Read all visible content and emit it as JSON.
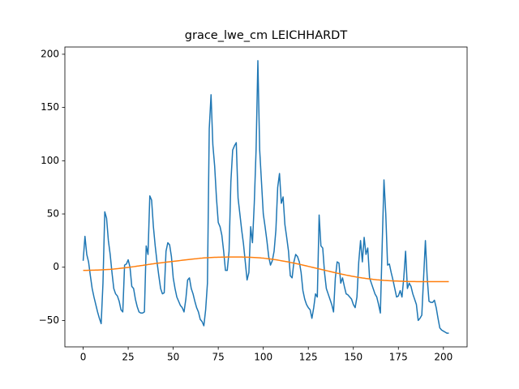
{
  "chart_data": {
    "type": "line",
    "title": "grace_lwe_cm LEICHHARDT",
    "x": [
      0,
      1,
      2,
      3,
      4,
      5,
      6,
      7,
      8,
      9,
      10,
      11,
      12,
      13,
      14,
      15,
      16,
      17,
      18,
      19,
      20,
      21,
      22,
      23,
      24,
      25,
      26,
      27,
      28,
      29,
      30,
      31,
      32,
      33,
      34,
      35,
      36,
      37,
      38,
      39,
      40,
      41,
      42,
      43,
      44,
      45,
      46,
      47,
      48,
      49,
      50,
      51,
      52,
      53,
      54,
      55,
      56,
      57,
      58,
      59,
      60,
      61,
      62,
      63,
      64,
      65,
      66,
      67,
      68,
      69,
      70,
      71,
      72,
      73,
      74,
      75,
      76,
      77,
      78,
      79,
      80,
      81,
      82,
      83,
      84,
      85,
      86,
      87,
      88,
      89,
      90,
      91,
      92,
      93,
      94,
      95,
      96,
      97,
      98,
      99,
      100,
      101,
      102,
      103,
      104,
      105,
      106,
      107,
      108,
      109,
      110,
      111,
      112,
      113,
      114,
      115,
      116,
      117,
      118,
      119,
      120,
      121,
      122,
      123,
      124,
      125,
      126,
      127,
      128,
      129,
      130,
      131,
      132,
      133,
      134,
      135,
      136,
      137,
      138,
      139,
      140,
      141,
      142,
      143,
      144,
      145,
      146,
      147,
      148,
      149,
      150,
      151,
      152,
      153,
      154,
      155,
      156,
      157,
      158,
      159,
      160,
      161,
      162,
      163,
      164,
      165,
      166,
      167,
      168,
      169,
      170,
      171,
      172,
      173,
      174,
      175,
      176,
      177,
      178,
      179,
      180,
      181,
      182,
      183,
      184,
      185,
      186,
      187,
      188,
      189,
      190,
      191,
      192,
      193,
      194,
      195,
      196,
      197,
      198,
      199,
      200,
      201,
      202,
      203
    ],
    "series": [
      {
        "color": "#1f77b4",
        "values": [
          6,
          29,
          12,
          5,
          -8,
          -20,
          -28,
          -35,
          -42,
          -48,
          -53,
          -15,
          52,
          46,
          25,
          12,
          -5,
          -20,
          -25,
          -27,
          -32,
          -40,
          -42,
          2,
          3,
          7,
          0,
          -18,
          -20,
          -30,
          -37,
          -42,
          -43,
          -43,
          -42,
          20,
          12,
          67,
          63,
          38,
          20,
          5,
          -8,
          -20,
          -25,
          -24,
          15,
          23,
          21,
          10,
          -10,
          -20,
          -28,
          -32,
          -36,
          -38,
          -42,
          -30,
          -12,
          -10,
          -20,
          -25,
          -32,
          -38,
          -42,
          -49,
          -51,
          -55,
          -40,
          -15,
          130,
          162,
          115,
          95,
          65,
          42,
          38,
          30,
          15,
          -3,
          -3,
          15,
          80,
          110,
          114,
          117,
          65,
          50,
          35,
          22,
          5,
          -12,
          -5,
          38,
          23,
          60,
          110,
          194,
          110,
          80,
          50,
          38,
          25,
          10,
          2,
          6,
          15,
          35,
          75,
          88,
          60,
          66,
          40,
          28,
          15,
          -8,
          -10,
          5,
          12,
          10,
          5,
          -5,
          -22,
          -30,
          -35,
          -38,
          -40,
          -48,
          -38,
          -25,
          -28,
          49,
          20,
          18,
          -5,
          -20,
          -25,
          -30,
          -35,
          -42,
          -10,
          5,
          4,
          -15,
          -10,
          -18,
          -25,
          -26,
          -28,
          -30,
          -35,
          -38,
          -28,
          5,
          25,
          5,
          28,
          12,
          18,
          -10,
          -15,
          -20,
          -25,
          -28,
          -35,
          -43,
          20,
          82,
          50,
          2,
          3,
          -5,
          -12,
          -20,
          -28,
          -27,
          -22,
          -28,
          -10,
          15,
          -20,
          -15,
          -18,
          -25,
          -30,
          -35,
          -50,
          -48,
          -45,
          -10,
          25,
          -10,
          -32,
          -33,
          -33,
          -31,
          -38,
          -48,
          -57,
          -59,
          -60,
          -61,
          -62,
          -62
        ]
      },
      {
        "color": "#ff7f0e",
        "values": [
          -3,
          -3,
          -3,
          -2.9,
          -2.9,
          -2.8,
          -2.8,
          -2.7,
          -2.7,
          -2.6,
          -2.5,
          -2.4,
          -2.3,
          -2.2,
          -2.1,
          -2,
          -1.8,
          -1.7,
          -1.5,
          -1.4,
          -1.2,
          -1,
          -0.8,
          -0.6,
          -0.4,
          -0.2,
          0,
          0.3,
          0.5,
          0.7,
          1,
          1.2,
          1.5,
          1.7,
          2,
          2.2,
          2.5,
          2.7,
          3,
          3.2,
          3.5,
          3.7,
          3.9,
          4.1,
          4.3,
          4.5,
          4.7,
          4.9,
          5.1,
          5.3,
          5.5,
          5.7,
          5.9,
          6.1,
          6.3,
          6.5,
          6.7,
          6.9,
          7.1,
          7.3,
          7.5,
          7.7,
          7.9,
          8,
          8.2,
          8.4,
          8.5,
          8.7,
          8.8,
          8.9,
          9,
          9.1,
          9.2,
          9.3,
          9.3,
          9.4,
          9.4,
          9.5,
          9.5,
          9.5,
          9.6,
          9.6,
          9.6,
          9.6,
          9.6,
          9.6,
          9.6,
          9.6,
          9.6,
          9.5,
          9.5,
          9.4,
          9.4,
          9.3,
          9.2,
          9.1,
          9,
          8.9,
          8.8,
          8.6,
          8.5,
          8.3,
          8.1,
          7.9,
          7.7,
          7.5,
          7.2,
          7,
          6.7,
          6.4,
          6.1,
          5.8,
          5.5,
          5.2,
          4.9,
          4.5,
          4.2,
          3.9,
          3.5,
          3.1,
          2.8,
          2.4,
          2,
          1.6,
          1.2,
          0.8,
          0.4,
          0,
          -0.4,
          -0.8,
          -1.2,
          -1.6,
          -2,
          -2.4,
          -2.8,
          -3.2,
          -3.6,
          -4,
          -4.4,
          -4.8,
          -5.2,
          -5.6,
          -5.9,
          -6.3,
          -6.7,
          -7,
          -7.4,
          -7.7,
          -8,
          -8.4,
          -8.7,
          -9,
          -9.3,
          -9.6,
          -9.8,
          -10.1,
          -10.3,
          -10.6,
          -10.8,
          -11,
          -11.2,
          -11.4,
          -11.6,
          -11.8,
          -11.9,
          -12.1,
          -12.2,
          -12.4,
          -12.5,
          -12.6,
          -12.7,
          -12.8,
          -12.9,
          -13,
          -13,
          -13.1,
          -13.2,
          -13.2,
          -13.3,
          -13.3,
          -13.3,
          -13.4,
          -13.4,
          -13.4,
          -13.4,
          -13.5,
          -13.5,
          -13.5,
          -13.5,
          -13.5,
          -13.5,
          -13.5,
          -13.5,
          -13.5,
          -13.5,
          -13.5,
          -13.5,
          -13.5,
          -13.5,
          -13.5,
          -13.5,
          -13.5,
          -13.5,
          -13.5
        ]
      }
    ],
    "xlim": [
      -10.15,
      213.15
    ],
    "xticks": [
      0,
      25,
      50,
      75,
      100,
      125,
      150,
      175,
      200
    ],
    "ylim": [
      -74.8,
      206.8
    ],
    "yticks": [
      {
        "value": -50,
        "label": "−50"
      },
      0,
      50,
      100,
      150,
      200
    ]
  }
}
